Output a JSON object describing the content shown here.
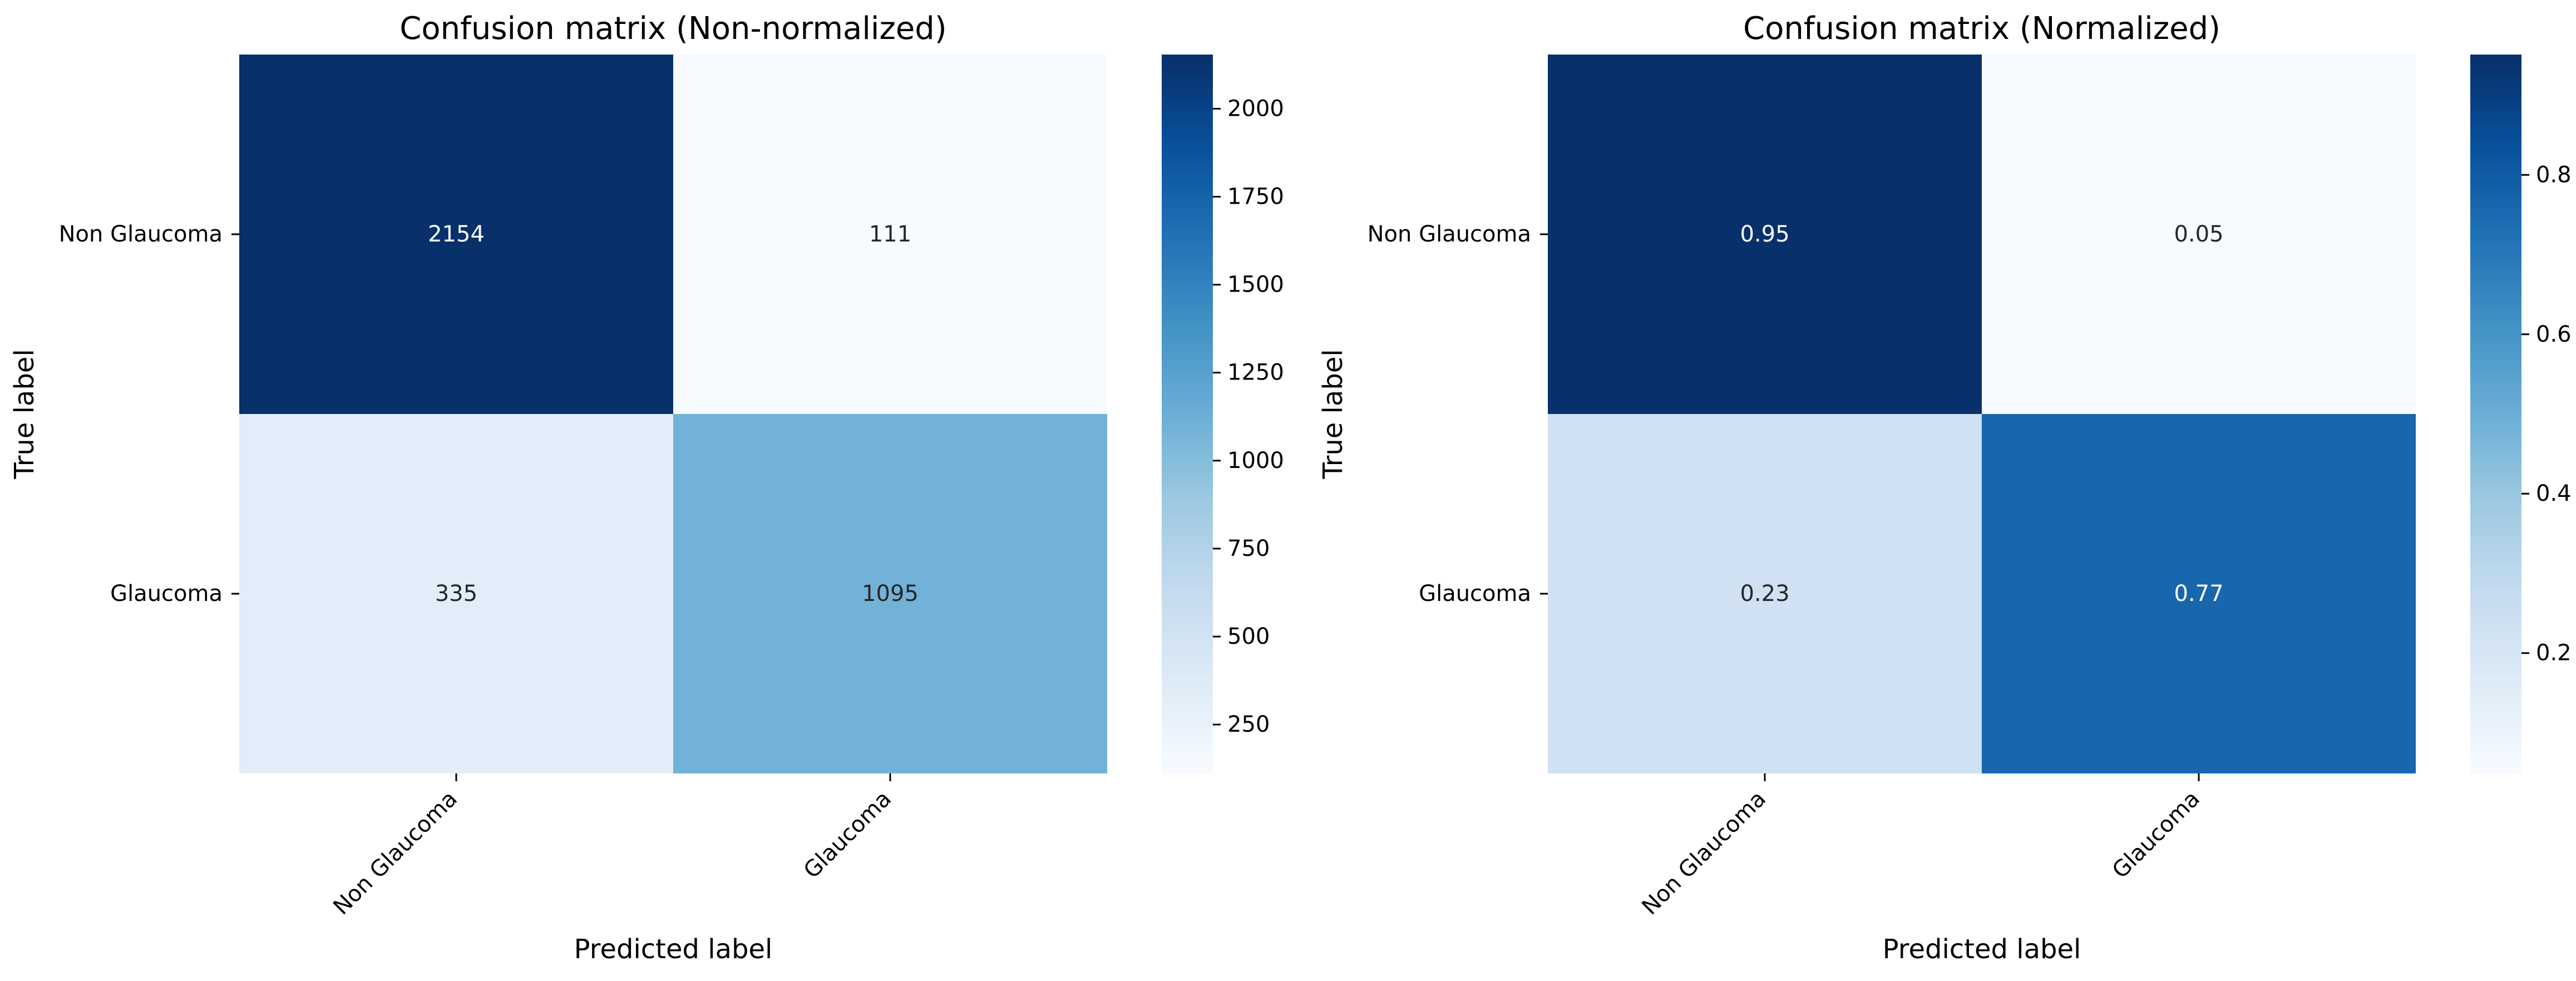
{
  "chart_data": [
    {
      "type": "heatmap",
      "title": "Confusion matrix (Non-normalized)",
      "xlabel": "Predicted label",
      "ylabel": "True label",
      "x_categories": [
        "Non Glaucoma",
        "Glaucoma"
      ],
      "y_categories": [
        "Non Glaucoma",
        "Glaucoma"
      ],
      "cell_labels": [
        [
          "2154",
          "111"
        ],
        [
          "335",
          "1095"
        ]
      ],
      "values": [
        [
          2154,
          111
        ],
        [
          335,
          1095
        ]
      ],
      "colormap": "Blues",
      "color_range": [
        111,
        2154
      ],
      "colorbar_ticks": [
        250,
        500,
        750,
        1000,
        1250,
        1500,
        1750,
        2000
      ]
    },
    {
      "type": "heatmap",
      "title": "Confusion matrix (Normalized)",
      "xlabel": "Predicted label",
      "ylabel": "True label",
      "x_categories": [
        "Non Glaucoma",
        "Glaucoma"
      ],
      "y_categories": [
        "Non Glaucoma",
        "Glaucoma"
      ],
      "cell_labels": [
        [
          "0.95",
          "0.05"
        ],
        [
          "0.23",
          "0.77"
        ]
      ],
      "values": [
        [
          0.951,
          0.049
        ],
        [
          0.234,
          0.766
        ]
      ],
      "colormap": "Blues",
      "color_range": [
        0.049,
        0.951
      ],
      "colorbar_ticks": [
        0.2,
        0.4,
        0.6,
        0.8
      ]
    }
  ],
  "colors": {
    "blues": [
      "#f7fbff",
      "#deebf7",
      "#c6dbef",
      "#9ecae1",
      "#6baed6",
      "#4292c6",
      "#2171b5",
      "#08519c",
      "#08306b"
    ],
    "text_dark": "#262626",
    "text_light": "#ffffff"
  }
}
